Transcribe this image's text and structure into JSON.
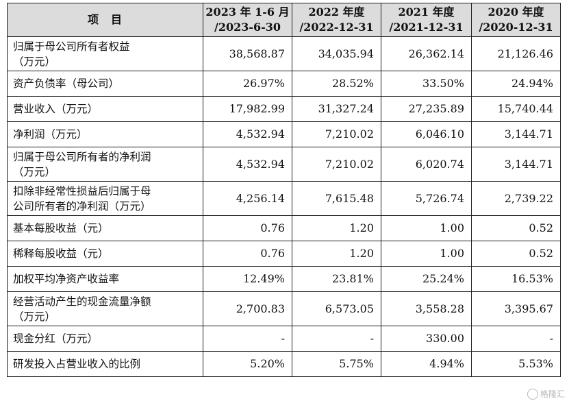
{
  "table": {
    "headers": [
      "项　目",
      [
        "2023 年 1-6 月",
        "/2023-6-30"
      ],
      [
        "2022 年度",
        "/2022-12-31"
      ],
      [
        "2021 年度",
        "/2021-12-31"
      ],
      [
        "2020 年度",
        "/2020-12-31"
      ]
    ],
    "rows": [
      {
        "label": [
          "归属于母公司所有者权益",
          "（万元）"
        ],
        "values": [
          "38,568.87",
          "34,035.94",
          "26,362.14",
          "21,126.46"
        ]
      },
      {
        "label": [
          "资产负债率（母公司）"
        ],
        "values": [
          "26.97%",
          "28.52%",
          "33.50%",
          "24.94%"
        ]
      },
      {
        "label": [
          "营业收入（万元）"
        ],
        "values": [
          "17,982.99",
          "31,327.24",
          "27,235.89",
          "15,740.44"
        ]
      },
      {
        "label": [
          "净利润（万元）"
        ],
        "values": [
          "4,532.94",
          "7,210.02",
          "6,046.10",
          "3,144.71"
        ]
      },
      {
        "label": [
          "归属于母公司所有者的净利润",
          "（万元）"
        ],
        "values": [
          "4,532.94",
          "7,210.02",
          "6,020.74",
          "3,144.71"
        ]
      },
      {
        "label": [
          "扣除非经常性损益后归属于母",
          "公司所有者的净利润（万元）"
        ],
        "values": [
          "4,256.14",
          "7,615.48",
          "5,726.74",
          "2,739.22"
        ]
      },
      {
        "label": [
          "基本每股收益（元）"
        ],
        "values": [
          "0.76",
          "1.20",
          "1.00",
          "0.52"
        ]
      },
      {
        "label": [
          "稀释每股收益（元）"
        ],
        "values": [
          "0.76",
          "1.20",
          "1.00",
          "0.52"
        ]
      },
      {
        "label": [
          "加权平均净资产收益率"
        ],
        "values": [
          "12.49%",
          "23.81%",
          "25.24%",
          "16.53%"
        ]
      },
      {
        "label": [
          "经营活动产生的现金流量净额",
          "（万元）"
        ],
        "values": [
          "2,700.83",
          "6,573.05",
          "3,558.28",
          "3,395.67"
        ]
      },
      {
        "label": [
          "现金分红（万元）"
        ],
        "values": [
          "-",
          "-",
          "330.00",
          "-"
        ]
      },
      {
        "label": [
          "研发投入占营业收入的比例"
        ],
        "values": [
          "5.20%",
          "5.75%",
          "4.94%",
          "5.53%"
        ]
      }
    ]
  },
  "watermark": {
    "icon": "gelonghui-logo-icon",
    "text": "格隆汇"
  }
}
